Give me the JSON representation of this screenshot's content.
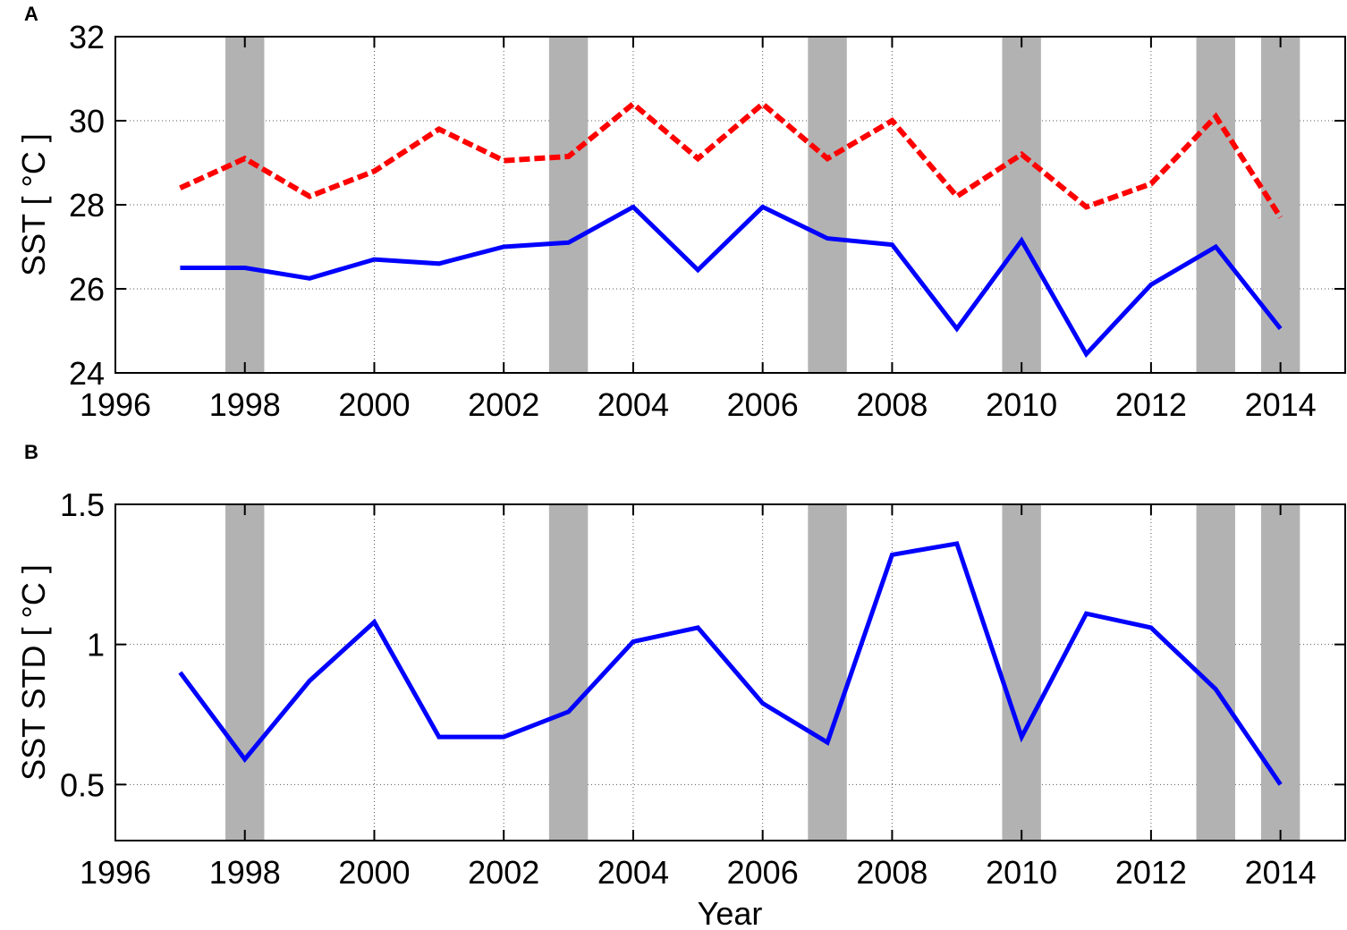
{
  "chart_data": [
    {
      "type": "line",
      "panel": "A",
      "title": "",
      "xlabel": "",
      "ylabel": "SST [ °C ]",
      "xlim": [
        1996,
        2015
      ],
      "ylim": [
        24,
        32
      ],
      "xticks": [
        1996,
        1998,
        2000,
        2002,
        2004,
        2006,
        2008,
        2010,
        2012,
        2014
      ],
      "yticks": [
        24,
        26,
        28,
        30,
        32
      ],
      "grid": true,
      "x": [
        1997,
        1998,
        1999,
        2000,
        2001,
        2002,
        2003,
        2004,
        2005,
        2006,
        2007,
        2008,
        2009,
        2010,
        2011,
        2012,
        2013,
        2014
      ],
      "series": [
        {
          "name": "upper (red dashed)",
          "color": "#ff0000",
          "style": "dashed",
          "values": [
            28.4,
            29.1,
            28.2,
            28.8,
            29.8,
            29.05,
            29.15,
            30.4,
            29.1,
            30.4,
            29.1,
            30.0,
            28.2,
            29.2,
            27.95,
            28.5,
            30.1,
            27.7
          ]
        },
        {
          "name": "lower (blue solid)",
          "color": "#0000ff",
          "style": "solid",
          "values": [
            26.5,
            26.5,
            26.25,
            26.7,
            26.6,
            27.0,
            27.1,
            27.95,
            26.45,
            27.95,
            27.2,
            27.05,
            25.05,
            27.15,
            24.45,
            26.1,
            27.0,
            25.05
          ]
        }
      ],
      "shaded_bands": [
        [
          1997.7,
          1998.3
        ],
        [
          2002.7,
          2003.3
        ],
        [
          2006.7,
          2007.3
        ],
        [
          2009.7,
          2010.3
        ],
        [
          2012.7,
          2013.3
        ],
        [
          2013.7,
          2014.3
        ]
      ]
    },
    {
      "type": "line",
      "panel": "B",
      "title": "",
      "xlabel": "Year",
      "ylabel": "SST STD [ °C ]",
      "xlim": [
        1996,
        2015
      ],
      "ylim": [
        0.3,
        1.5
      ],
      "xticks": [
        1996,
        1998,
        2000,
        2002,
        2004,
        2006,
        2008,
        2010,
        2012,
        2014
      ],
      "yticks": [
        0.5,
        1,
        1.5
      ],
      "grid": true,
      "x": [
        1997,
        1998,
        1999,
        2000,
        2001,
        2002,
        2003,
        2004,
        2005,
        2006,
        2007,
        2008,
        2009,
        2010,
        2011,
        2012,
        2013,
        2014
      ],
      "series": [
        {
          "name": "SST STD",
          "color": "#0000ff",
          "style": "solid",
          "values": [
            0.9,
            0.59,
            0.87,
            1.08,
            0.67,
            0.67,
            0.76,
            1.01,
            1.06,
            0.79,
            0.65,
            1.32,
            1.36,
            0.67,
            1.11,
            1.06,
            0.84,
            0.5
          ]
        }
      ],
      "shaded_bands": [
        [
          1997.7,
          1998.3
        ],
        [
          2002.7,
          2003.3
        ],
        [
          2006.7,
          2007.3
        ],
        [
          2009.7,
          2010.3
        ],
        [
          2012.7,
          2013.3
        ],
        [
          2013.7,
          2014.3
        ]
      ]
    }
  ],
  "panels": {
    "a": {
      "label": "A",
      "ylabel": "SST [ °C ]"
    },
    "b": {
      "label": "B",
      "ylabel": "SST STD [ °C ]",
      "xlabel": "Year"
    }
  },
  "colors": {
    "band": "#b2b2b2",
    "red": "#ff0000",
    "blue": "#0000ff",
    "grid": "#555555"
  }
}
